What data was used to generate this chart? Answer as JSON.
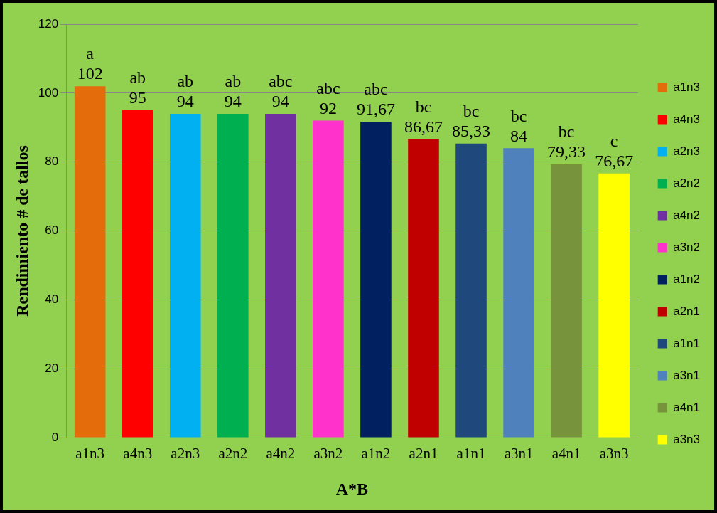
{
  "chart_data": {
    "type": "bar",
    "xlabel": "A*B",
    "ylabel": "Rendimiento # de tallos",
    "categories": [
      "a1n3",
      "a4n3",
      "a2n3",
      "a2n2",
      "a4n2",
      "a3n2",
      "a1n2",
      "a2n1",
      "a1n1",
      "a3n1",
      "a4n1",
      "a3n3"
    ],
    "series": [
      {
        "name": "a1n3",
        "color": "#e46c0a",
        "values": [
          102,
          null,
          null,
          null,
          null,
          null,
          null,
          null,
          null,
          null,
          null,
          null
        ],
        "value_labels": [
          "102",
          null,
          null,
          null,
          null,
          null,
          null,
          null,
          null,
          null,
          null,
          null
        ]
      },
      {
        "name": "a4n3",
        "color": "#ff0000",
        "values": [
          null,
          95,
          null,
          null,
          null,
          null,
          null,
          null,
          null,
          null,
          null,
          null
        ],
        "value_labels": [
          null,
          "95",
          null,
          null,
          null,
          null,
          null,
          null,
          null,
          null,
          null,
          null
        ]
      },
      {
        "name": "a2n3",
        "color": "#00b0f0",
        "values": [
          null,
          null,
          94,
          null,
          null,
          null,
          null,
          null,
          null,
          null,
          null,
          null
        ],
        "value_labels": [
          null,
          null,
          "94",
          null,
          null,
          null,
          null,
          null,
          null,
          null,
          null,
          null
        ]
      },
      {
        "name": "a2n2",
        "color": "#00b050",
        "values": [
          null,
          null,
          null,
          94,
          null,
          null,
          null,
          null,
          null,
          null,
          null,
          null
        ],
        "value_labels": [
          null,
          null,
          null,
          "94",
          null,
          null,
          null,
          null,
          null,
          null,
          null,
          null
        ]
      },
      {
        "name": "a4n2",
        "color": "#7030a0",
        "values": [
          null,
          null,
          null,
          null,
          94,
          null,
          null,
          null,
          null,
          null,
          null,
          null
        ],
        "value_labels": [
          null,
          null,
          null,
          null,
          "94",
          null,
          null,
          null,
          null,
          null,
          null,
          null
        ]
      },
      {
        "name": "a3n2",
        "color": "#ff33cc",
        "values": [
          null,
          null,
          null,
          null,
          null,
          92,
          null,
          null,
          null,
          null,
          null,
          null
        ],
        "value_labels": [
          null,
          null,
          null,
          null,
          null,
          "92",
          null,
          null,
          null,
          null,
          null,
          null
        ]
      },
      {
        "name": "a1n2",
        "color": "#002060",
        "values": [
          null,
          null,
          null,
          null,
          null,
          null,
          91.67,
          null,
          null,
          null,
          null,
          null
        ],
        "value_labels": [
          null,
          null,
          null,
          null,
          null,
          null,
          "91,67",
          null,
          null,
          null,
          null,
          null
        ]
      },
      {
        "name": "a2n1",
        "color": "#c00000",
        "values": [
          null,
          null,
          null,
          null,
          null,
          null,
          null,
          86.67,
          null,
          null,
          null,
          null
        ],
        "value_labels": [
          null,
          null,
          null,
          null,
          null,
          null,
          null,
          "86,67",
          null,
          null,
          null,
          null
        ]
      },
      {
        "name": "a1n1",
        "color": "#1f497d",
        "values": [
          null,
          null,
          null,
          null,
          null,
          null,
          null,
          null,
          85.33,
          null,
          null,
          null
        ],
        "value_labels": [
          null,
          null,
          null,
          null,
          null,
          null,
          null,
          null,
          "85,33",
          null,
          null,
          null
        ]
      },
      {
        "name": "a3n1",
        "color": "#4f81bd",
        "values": [
          null,
          null,
          null,
          null,
          null,
          null,
          null,
          null,
          null,
          84,
          null,
          null
        ],
        "value_labels": [
          null,
          null,
          null,
          null,
          null,
          null,
          null,
          null,
          null,
          "84",
          null,
          null
        ]
      },
      {
        "name": "a4n1",
        "color": "#77933c",
        "values": [
          null,
          null,
          null,
          null,
          null,
          null,
          null,
          null,
          null,
          null,
          79.33,
          null
        ],
        "value_labels": [
          null,
          null,
          null,
          null,
          null,
          null,
          null,
          null,
          null,
          null,
          "79,33",
          null
        ]
      },
      {
        "name": "a3n3",
        "color": "#ffff00",
        "values": [
          null,
          null,
          null,
          null,
          null,
          null,
          null,
          null,
          null,
          null,
          null,
          76.67
        ],
        "value_labels": [
          null,
          null,
          null,
          null,
          null,
          null,
          null,
          null,
          null,
          null,
          null,
          "76,67"
        ]
      }
    ],
    "annotations": [
      {
        "text": "a",
        "x": "a1n3",
        "y": 102
      },
      {
        "text": "ab",
        "x": "a4n3",
        "y": 95
      },
      {
        "text": "ab",
        "x": "a2n3",
        "y": 94
      },
      {
        "text": "ab",
        "x": "a2n2",
        "y": 94
      },
      {
        "text": "abc",
        "x": "a4n2",
        "y": 94
      },
      {
        "text": "abc",
        "x": "a3n2",
        "y": 92
      },
      {
        "text": "abc",
        "x": "a1n2",
        "y": 91.67
      },
      {
        "text": "bc",
        "x": "a2n1",
        "y": 86.67
      },
      {
        "text": "bc",
        "x": "a1n1",
        "y": 85.33
      },
      {
        "text": "bc",
        "x": "a3n1",
        "y": 84
      },
      {
        "text": "bc",
        "x": "a4n1",
        "y": 79.33
      },
      {
        "text": "c",
        "x": "a3n3",
        "y": 76.67
      }
    ],
    "ylim": [
      0,
      120
    ],
    "yticks": [
      0,
      20,
      40,
      60,
      80,
      100,
      120
    ],
    "grid": "y",
    "legend": "right"
  }
}
